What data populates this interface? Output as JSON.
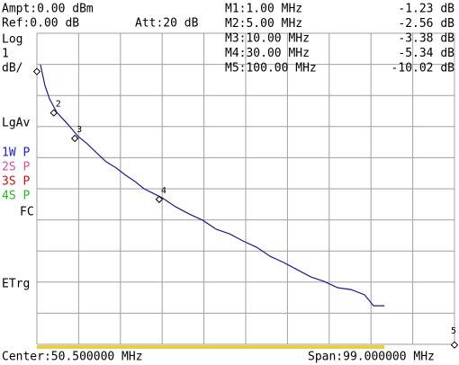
{
  "header": {
    "ampt": "Ampt:0.00 dBm",
    "ref": "Ref:0.00 dB",
    "att": "Att:20 dB"
  },
  "side": {
    "scale": [
      "Log",
      "1",
      "dB/"
    ],
    "avg": "LgAv",
    "traces": [
      {
        "text": "1W P",
        "color": "#1a1aff"
      },
      {
        "text": "2S P",
        "color": "#e0509a"
      },
      {
        "text": "3S P",
        "color": "#d01010"
      },
      {
        "text": "4S P",
        "color": "#20c020"
      }
    ],
    "fc": "FC",
    "trigger": "ETrg"
  },
  "footer": {
    "center": "Center:50.500000 MHz",
    "span": "Span:99.000000 MHz"
  },
  "chart_data": {
    "type": "line",
    "xlim": [
      1,
      100
    ],
    "ylim": [
      -10,
      0
    ],
    "grid": true,
    "series": [
      {
        "color": "#1a1a9c",
        "x": [
          1.85,
          2.9,
          4.0,
          5.7,
          8.3,
          10.8,
          12.9,
          15.1,
          17.4,
          19.6,
          22.1,
          24.3,
          26.4,
          30.7,
          33.9,
          37.1,
          40.3,
          43.5,
          46.7,
          49.9,
          53.1,
          56.3,
          59.5,
          62.7,
          65.9,
          69.1,
          72.3,
          75.5,
          78.7,
          80.8,
          83.4
        ],
        "values": [
          -1.01,
          -1.68,
          -2.11,
          -2.54,
          -2.92,
          -3.32,
          -3.55,
          -3.84,
          -4.13,
          -4.31,
          -4.57,
          -4.77,
          -5.0,
          -5.29,
          -5.58,
          -5.81,
          -6.01,
          -6.3,
          -6.45,
          -6.68,
          -6.88,
          -7.17,
          -7.37,
          -7.6,
          -7.83,
          -7.98,
          -8.18,
          -8.24,
          -8.41,
          -8.76,
          -8.76
        ]
      }
    ],
    "markers": {
      "x_labels": [
        "M1:1.00 MHz",
        "M2:5.00 MHz",
        "M3:10.00 MHz",
        "M4:30.00 MHz",
        "M5:100.00 MHz"
      ],
      "x": [
        1,
        5,
        10,
        30,
        100
      ],
      "values": [
        -1.23,
        -2.56,
        -3.38,
        -5.34,
        -10.02
      ],
      "value_labels": [
        "-1.23 dB",
        "-2.56 dB",
        "-3.38 dB",
        "-5.34 dB",
        "-10.02 dB"
      ],
      "numbers": [
        null,
        "2",
        "3",
        "4",
        "5"
      ]
    }
  }
}
